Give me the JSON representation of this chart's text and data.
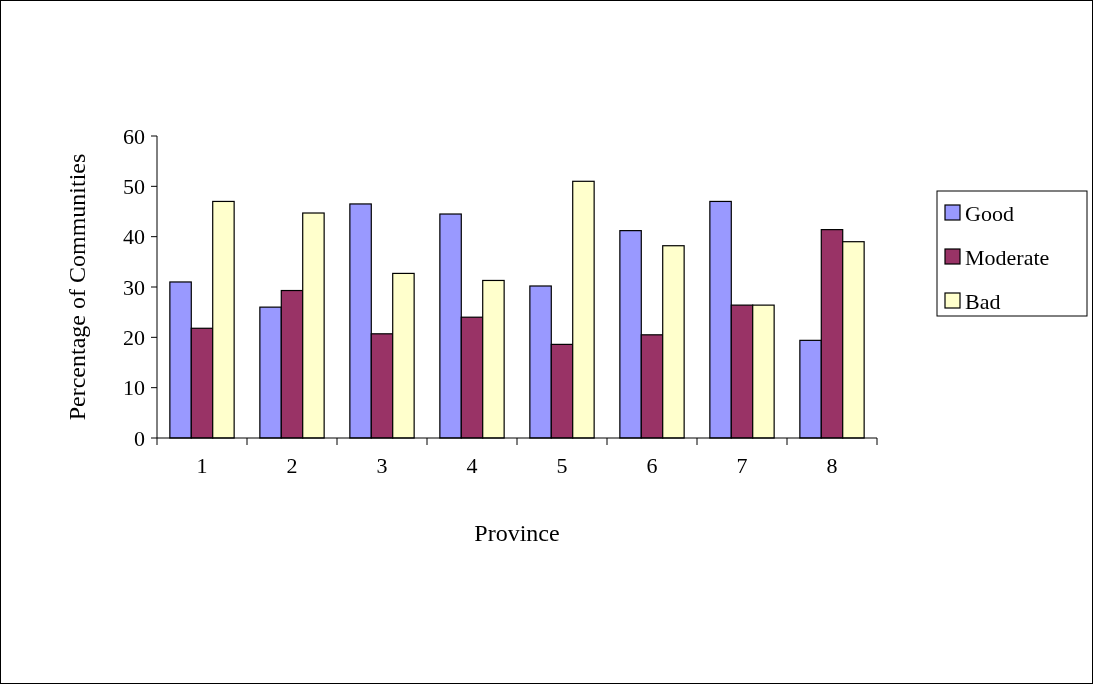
{
  "chart_data": {
    "type": "bar",
    "xlabel": "Province",
    "ylabel": "Percentage of Communities",
    "categories": [
      "1",
      "2",
      "3",
      "4",
      "5",
      "6",
      "7",
      "8"
    ],
    "series": [
      {
        "name": "Good",
        "color": "#9999ff",
        "values": [
          31,
          26,
          46.5,
          44.5,
          30.2,
          41.2,
          47,
          19.4
        ]
      },
      {
        "name": "Moderate",
        "color": "#993366",
        "values": [
          21.8,
          29.3,
          20.7,
          24,
          18.6,
          20.5,
          26.4,
          41.4
        ]
      },
      {
        "name": "Bad",
        "color": "#ffffcc",
        "values": [
          47,
          44.7,
          32.7,
          31.3,
          51,
          38.2,
          26.4,
          39
        ]
      }
    ],
    "ylim": [
      0,
      60
    ],
    "yticks": [
      0,
      10,
      20,
      30,
      40,
      50,
      60
    ],
    "grid": false,
    "legend": "right"
  }
}
